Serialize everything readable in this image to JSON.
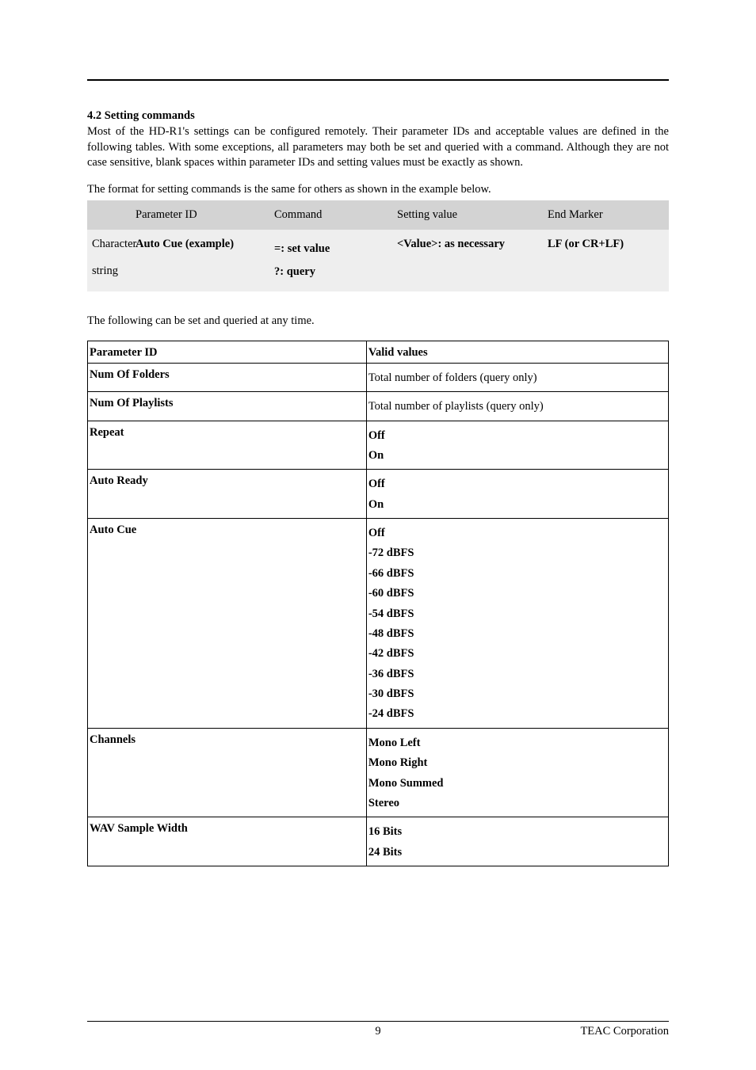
{
  "section": {
    "heading": "4.2 Setting commands",
    "para1": "Most of the HD-R1's settings can be configured remotely. Their parameter IDs and acceptable values are defined in the following tables. With some exceptions, all parameters may both be set and queried with a command. Although they are not case sensitive, blank spaces within parameter IDs and setting values must be exactly as shown.",
    "para2": "The format for setting commands is the same for others as shown in the example below.",
    "para3": "The following can be set and queried at any time."
  },
  "format_table": {
    "headers": {
      "blank": "",
      "param_id": "Parameter ID",
      "command": "Command",
      "setting_value": "Setting value",
      "end_marker": "End Marker"
    },
    "row": {
      "label_line1": "Character",
      "label_line2": "string",
      "param_id": "Auto Cue (example)",
      "command_set": "=: set value",
      "command_query": "?: query",
      "setting_value": "<Value>: as necessary",
      "end_marker": "LF (or CR+LF)"
    }
  },
  "params_table": {
    "headers": {
      "param_id": "Parameter ID",
      "valid_values": "Valid values"
    },
    "rows": [
      {
        "name": "Num Of Folders",
        "values": [
          {
            "text": "Total number of folders (query only)",
            "bold": false
          }
        ]
      },
      {
        "name": "Num Of Playlists",
        "values": [
          {
            "text": "Total number of playlists (query only)",
            "bold": false
          }
        ]
      },
      {
        "name": "Repeat",
        "values": [
          {
            "text": "Off",
            "bold": true
          },
          {
            "text": "On",
            "bold": true
          }
        ]
      },
      {
        "name": "Auto Ready",
        "values": [
          {
            "text": "Off",
            "bold": true
          },
          {
            "text": "On",
            "bold": true
          }
        ]
      },
      {
        "name": "Auto Cue",
        "values": [
          {
            "text": "Off",
            "bold": true
          },
          {
            "text": "-72 dBFS",
            "bold": true
          },
          {
            "text": "-66 dBFS",
            "bold": true
          },
          {
            "text": "-60 dBFS",
            "bold": true
          },
          {
            "text": "-54 dBFS",
            "bold": true
          },
          {
            "text": "-48 dBFS",
            "bold": true
          },
          {
            "text": "-42 dBFS",
            "bold": true
          },
          {
            "text": "-36 dBFS",
            "bold": true
          },
          {
            "text": "-30 dBFS",
            "bold": true
          },
          {
            "text": "-24 dBFS",
            "bold": true
          }
        ]
      },
      {
        "name": "Channels",
        "values": [
          {
            "text": "Mono Left",
            "bold": true
          },
          {
            "text": "Mono Right",
            "bold": true
          },
          {
            "text": "Mono Summed",
            "bold": true
          },
          {
            "text": "Stereo",
            "bold": true
          }
        ]
      },
      {
        "name": "WAV Sample Width",
        "values": [
          {
            "text": "16 Bits",
            "bold": true
          },
          {
            "text": "24 Bits",
            "bold": true
          }
        ]
      }
    ]
  },
  "footer": {
    "page_number": "9",
    "company": "TEAC Corporation"
  }
}
